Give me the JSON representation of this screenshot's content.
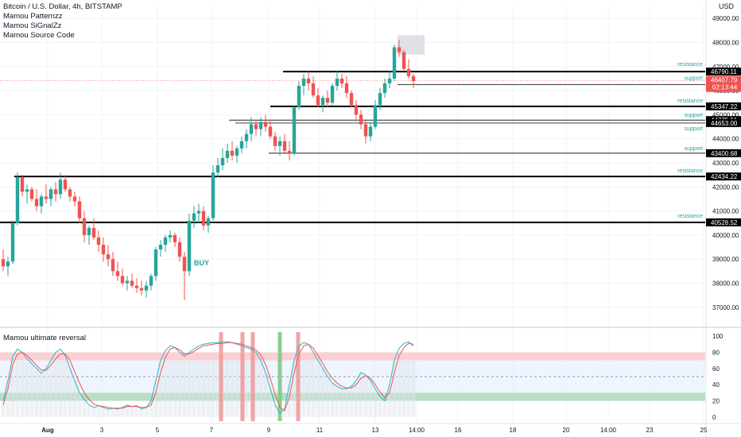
{
  "header": {
    "title": "Bitcoin / U.S. Dollar, 4h, BITSTAMP",
    "studies": [
      "Mamou Patternzz",
      "Mamou SiGnalZz",
      "Mamou Source Code"
    ],
    "currency": "USD"
  },
  "signal_label": "BUY",
  "indicator_title": "Mamou ultimate reversal",
  "countdown": "02:13:44",
  "colors": {
    "up": "#26a69a",
    "down": "#ef5350",
    "bg": "#ffffff",
    "grid": "#f0f3fa",
    "level": "#000000",
    "label": "#26a69a",
    "overbought": "#f7c5c8",
    "oversold": "#a5d6b4",
    "mid": "#e3effd"
  },
  "chart_data": [
    {
      "type": "candlestick",
      "title": "Bitcoin / U.S. Dollar, 4h, BITSTAMP",
      "ylim": [
        36300,
        49500
      ],
      "y_ticks": [
        37000,
        38000,
        39000,
        40000,
        41000,
        42000,
        43000,
        44000,
        45000,
        46000,
        47000,
        48000,
        49000
      ],
      "x_ticks": [
        "Aug",
        "3",
        "5",
        "7",
        "9",
        "11",
        "13",
        "14:00",
        "16",
        "18",
        "20",
        "14:00",
        "23",
        "25"
      ],
      "last_price": 46407.79,
      "candles": [
        [
          39000,
          39400,
          38500,
          38700
        ],
        [
          38700,
          39100,
          38300,
          38900
        ],
        [
          38900,
          40600,
          38800,
          40500
        ],
        [
          40500,
          42600,
          40400,
          42400
        ],
        [
          42400,
          42500,
          41600,
          41800
        ],
        [
          41800,
          42100,
          41300,
          41900
        ],
        [
          41900,
          42000,
          41400,
          41500
        ],
        [
          41500,
          41900,
          41000,
          41200
        ],
        [
          41200,
          41700,
          40900,
          41600
        ],
        [
          41600,
          42100,
          41300,
          41500
        ],
        [
          41500,
          42000,
          41200,
          41900
        ],
        [
          41900,
          42200,
          41400,
          41700
        ],
        [
          41700,
          42600,
          41500,
          42300
        ],
        [
          42300,
          42500,
          41800,
          41900
        ],
        [
          41900,
          42000,
          41400,
          41600
        ],
        [
          41600,
          41800,
          41200,
          41400
        ],
        [
          41400,
          41600,
          40500,
          40700
        ],
        [
          40700,
          41000,
          39700,
          40000
        ],
        [
          40000,
          40400,
          39600,
          40300
        ],
        [
          40300,
          40700,
          39800,
          39900
        ],
        [
          39900,
          40200,
          39300,
          39600
        ],
        [
          39600,
          39900,
          38900,
          39200
        ],
        [
          39200,
          39600,
          38700,
          39000
        ],
        [
          39000,
          39300,
          38300,
          38500
        ],
        [
          38500,
          38900,
          38100,
          38300
        ],
        [
          38300,
          38600,
          37900,
          38000
        ],
        [
          38000,
          38300,
          37700,
          38100
        ],
        [
          38100,
          38400,
          37800,
          37900
        ],
        [
          37900,
          38200,
          37600,
          37800
        ],
        [
          37800,
          38100,
          37500,
          37700
        ],
        [
          37700,
          38100,
          37400,
          37900
        ],
        [
          37900,
          38400,
          37700,
          38300
        ],
        [
          38300,
          39500,
          38100,
          39400
        ],
        [
          39400,
          39800,
          39100,
          39600
        ],
        [
          39600,
          40000,
          39300,
          39900
        ],
        [
          39900,
          40200,
          39700,
          40000
        ],
        [
          40000,
          40100,
          39500,
          39700
        ],
        [
          39700,
          39900,
          38900,
          39100
        ],
        [
          39100,
          39300,
          37300,
          38500
        ],
        [
          38500,
          40900,
          38300,
          40600
        ],
        [
          40600,
          41200,
          40300,
          40900
        ],
        [
          40900,
          41300,
          40500,
          41000
        ],
        [
          41000,
          41200,
          40200,
          40400
        ],
        [
          40400,
          40800,
          40100,
          40700
        ],
        [
          40700,
          42900,
          40600,
          42600
        ],
        [
          42600,
          43200,
          42400,
          42900
        ],
        [
          42900,
          43600,
          42700,
          43200
        ],
        [
          43200,
          43800,
          43000,
          43500
        ],
        [
          43500,
          43900,
          43100,
          43300
        ],
        [
          43300,
          43700,
          43000,
          43600
        ],
        [
          43600,
          44100,
          43400,
          43900
        ],
        [
          43900,
          44400,
          43600,
          44200
        ],
        [
          44200,
          44900,
          43900,
          44600
        ],
        [
          44600,
          44800,
          44100,
          44400
        ],
        [
          44400,
          44900,
          44100,
          44700
        ],
        [
          44700,
          45000,
          44300,
          44500
        ],
        [
          44500,
          44800,
          44000,
          44100
        ],
        [
          44100,
          44300,
          43500,
          43700
        ],
        [
          43700,
          44100,
          43300,
          43900
        ],
        [
          43900,
          44200,
          43400,
          43500
        ],
        [
          43500,
          43900,
          43100,
          43400
        ],
        [
          43400,
          45400,
          43300,
          45300
        ],
        [
          45300,
          46400,
          45200,
          46200
        ],
        [
          46200,
          46700,
          45800,
          46500
        ],
        [
          46500,
          46800,
          46000,
          46300
        ],
        [
          46300,
          46600,
          45700,
          45800
        ],
        [
          45800,
          46100,
          45300,
          45400
        ],
        [
          45400,
          45800,
          45100,
          45700
        ],
        [
          45700,
          46000,
          45300,
          45500
        ],
        [
          45500,
          46300,
          45400,
          46200
        ],
        [
          46200,
          46800,
          46000,
          46500
        ],
        [
          46500,
          46700,
          46100,
          46300
        ],
        [
          46300,
          46600,
          45700,
          45900
        ],
        [
          45900,
          46000,
          45300,
          45400
        ],
        [
          45400,
          45600,
          44800,
          45000
        ],
        [
          45000,
          45200,
          44400,
          44600
        ],
        [
          44600,
          44800,
          43800,
          44100
        ],
        [
          44100,
          44700,
          43900,
          44500
        ],
        [
          44500,
          45600,
          44400,
          45400
        ],
        [
          45400,
          46100,
          45200,
          45900
        ],
        [
          45900,
          46500,
          45700,
          46300
        ],
        [
          46300,
          46800,
          46100,
          46500
        ],
        [
          46500,
          47900,
          46400,
          47800
        ],
        [
          47800,
          48100,
          47400,
          47600
        ],
        [
          47600,
          47700,
          46800,
          46900
        ],
        [
          46900,
          47300,
          46500,
          46600
        ],
        [
          46600,
          46700,
          46100,
          46400
        ]
      ],
      "levels": [
        {
          "label": "resistance",
          "price": 46790.11
        },
        {
          "label": "support",
          "price": 46245.62
        },
        {
          "label": "resistance",
          "price": 45347.22
        },
        {
          "label": "support",
          "price": 44775.51
        },
        {
          "label": "support",
          "price": 44653.0
        },
        {
          "label": "support",
          "price": 43400.68
        },
        {
          "label": "resistance",
          "price": 42434.22
        },
        {
          "label": "resistance",
          "price": 40528.52
        }
      ]
    },
    {
      "type": "line",
      "title": "Mamou ultimate reversal",
      "ylim": [
        -5,
        105
      ],
      "y_ticks": [
        0,
        20,
        40,
        60,
        80,
        100
      ],
      "bands": {
        "overbought": [
          70,
          80
        ],
        "oversold": [
          20,
          30
        ],
        "mid": 50
      },
      "series": [
        {
          "values": [
            20,
            45,
            75,
            84,
            80,
            72,
            66,
            60,
            54,
            60,
            70,
            80,
            84,
            76,
            60,
            45,
            30,
            22,
            15,
            12,
            14,
            12,
            10,
            11,
            10,
            12,
            15,
            13,
            14,
            10,
            12,
            20,
            45,
            70,
            82,
            88,
            86,
            80,
            75,
            80,
            84,
            88,
            90,
            91,
            92,
            92,
            93,
            93,
            92,
            90,
            88,
            86,
            84,
            80,
            70,
            55,
            35,
            15,
            5,
            10,
            40,
            70,
            88,
            92,
            90,
            80,
            70,
            60,
            50,
            42,
            38,
            35,
            35,
            38,
            45,
            55,
            52,
            45,
            35,
            25,
            20,
            40,
            70,
            85,
            91,
            93,
            88
          ]
        },
        {
          "values": [
            15,
            35,
            65,
            78,
            80,
            76,
            70,
            64,
            58,
            58,
            64,
            72,
            78,
            78,
            70,
            56,
            42,
            30,
            22,
            16,
            14,
            13,
            12,
            11,
            11,
            11,
            13,
            13,
            13,
            12,
            12,
            15,
            30,
            55,
            74,
            84,
            86,
            83,
            78,
            78,
            81,
            85,
            88,
            89,
            90,
            91,
            91,
            92,
            92,
            91,
            90,
            88,
            86,
            83,
            77,
            65,
            48,
            28,
            12,
            8,
            25,
            55,
            78,
            88,
            90,
            85,
            76,
            66,
            56,
            48,
            42,
            38,
            36,
            36,
            40,
            48,
            51,
            48,
            40,
            31,
            24,
            30,
            55,
            76,
            86,
            91,
            90
          ]
        }
      ],
      "highlights": [
        "red",
        "red",
        "red",
        "green",
        "red"
      ]
    }
  ]
}
